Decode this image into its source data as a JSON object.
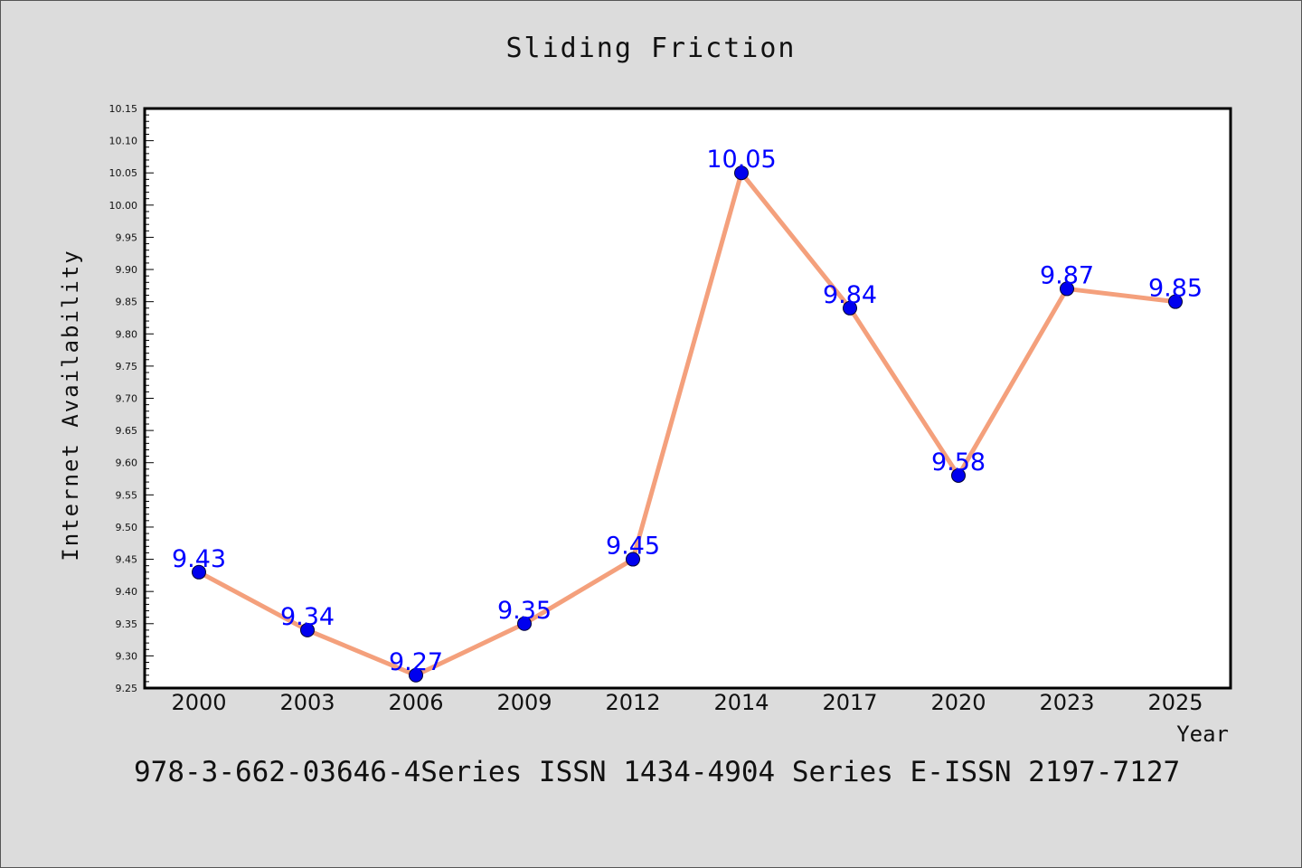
{
  "chart_data": {
    "type": "line",
    "title": "Sliding Friction",
    "xlabel": "Year",
    "ylabel": "Internet Availability",
    "categories": [
      "2000",
      "2003",
      "2006",
      "2009",
      "2012",
      "2014",
      "2017",
      "2020",
      "2023",
      "2025"
    ],
    "values": [
      9.43,
      9.34,
      9.27,
      9.35,
      9.45,
      10.05,
      9.84,
      9.58,
      9.87,
      9.85
    ],
    "data_labels": [
      "9.43",
      "9.34",
      "9.27",
      "9.35",
      "9.45",
      "10.05",
      "9.84",
      "9.58",
      "9.87",
      "9.85"
    ],
    "ylim": [
      9.25,
      10.15
    ],
    "yticks": [
      "9.25",
      "9.30",
      "9.35",
      "9.40",
      "9.45",
      "9.50",
      "9.55",
      "9.60",
      "9.65",
      "9.70",
      "9.75",
      "9.80",
      "9.85",
      "9.90",
      "9.95",
      "10.00",
      "10.05",
      "10.10",
      "10.15"
    ],
    "grid": false,
    "legend": "none",
    "line_color": "#f4a07c",
    "marker_color": "#0000ee",
    "label_color": "#0000ff"
  },
  "footer_text": "978-3-662-03646-4Series ISSN 1434-4904 Series E-ISSN 2197-7127"
}
